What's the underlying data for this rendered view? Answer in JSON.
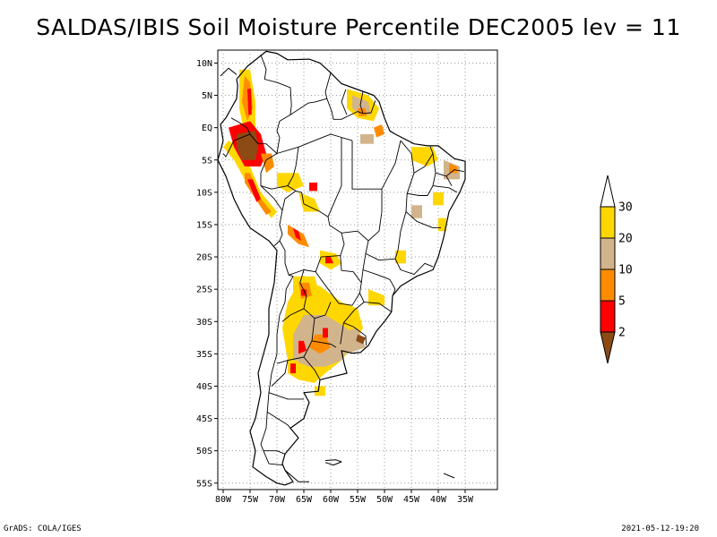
{
  "title": "SALDAS/IBIS Soil Moisture Percentile DEC2005 lev = 11",
  "map": {
    "lon_range": [
      -81,
      -29
    ],
    "lat_range": [
      -56,
      12
    ],
    "lat_ticks": [
      {
        "value": 10,
        "label": "10N"
      },
      {
        "value": 5,
        "label": "5N"
      },
      {
        "value": 0,
        "label": "EQ"
      },
      {
        "value": -5,
        "label": "5S"
      },
      {
        "value": -10,
        "label": "10S"
      },
      {
        "value": -15,
        "label": "15S"
      },
      {
        "value": -20,
        "label": "20S"
      },
      {
        "value": -25,
        "label": "25S"
      },
      {
        "value": -30,
        "label": "30S"
      },
      {
        "value": -35,
        "label": "35S"
      },
      {
        "value": -40,
        "label": "40S"
      },
      {
        "value": -45,
        "label": "45S"
      },
      {
        "value": -50,
        "label": "50S"
      },
      {
        "value": -55,
        "label": "55S"
      }
    ],
    "lon_ticks": [
      {
        "value": -80,
        "label": "80W"
      },
      {
        "value": -75,
        "label": "75W"
      },
      {
        "value": -70,
        "label": "70W"
      },
      {
        "value": -65,
        "label": "65W"
      },
      {
        "value": -60,
        "label": "60W"
      },
      {
        "value": -55,
        "label": "55W"
      },
      {
        "value": -50,
        "label": "50W"
      },
      {
        "value": -45,
        "label": "45W"
      },
      {
        "value": -40,
        "label": "40W"
      },
      {
        "value": -35,
        "label": "35W"
      }
    ],
    "grid": "dotted"
  },
  "colorbar": {
    "levels": [
      "2",
      "5",
      "10",
      "20",
      "30"
    ],
    "colors": [
      "#8c4a14",
      "#ff0000",
      "#ff8c00",
      "#d2b48c",
      "#ffd700",
      "#ffffff"
    ]
  },
  "footer": {
    "left": "GrADS: COLA/IGES",
    "right": "2021-05-12-19:20"
  }
}
